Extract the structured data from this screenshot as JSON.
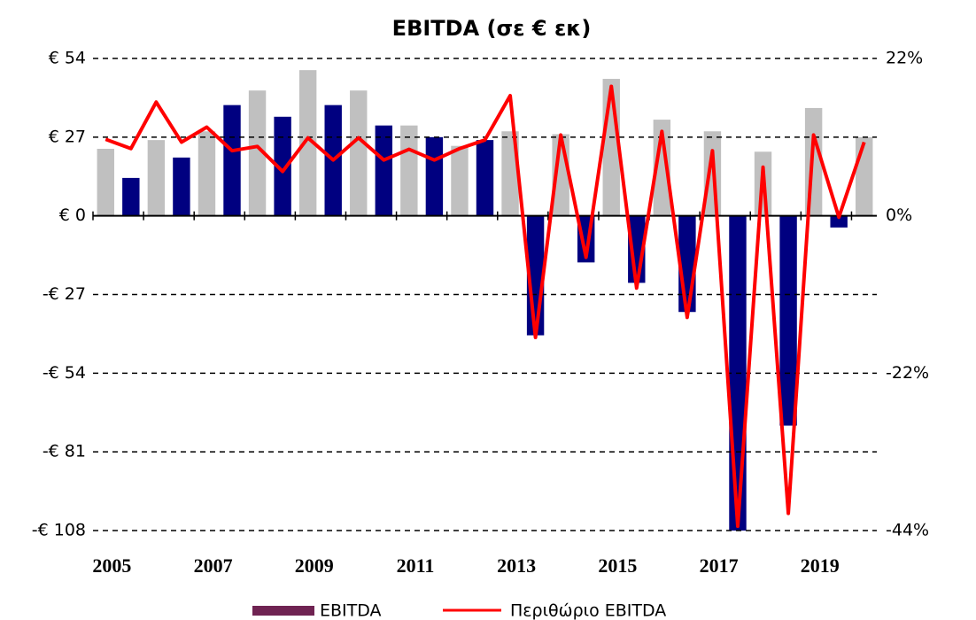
{
  "chart_data": {
    "type": "bar",
    "title": "EBITDA (σε € εκ)",
    "categories": [
      "2005",
      null,
      null,
      null,
      "2007",
      null,
      null,
      null,
      "2009",
      null,
      null,
      null,
      "2011",
      null,
      null,
      null,
      "2013",
      null,
      null,
      null,
      "2015",
      null,
      null,
      null,
      "2017",
      null,
      null,
      null,
      "2019",
      null,
      null
    ],
    "series": [
      {
        "name": "EBITDA",
        "color": "#6f2352",
        "bar_colors": [
          "#c0c0c0",
          "#000080"
        ],
        "values": [
          23,
          13,
          26,
          20,
          29,
          38,
          43,
          34,
          50,
          38,
          43,
          31,
          31,
          27,
          24,
          26,
          29,
          -41,
          28,
          -16,
          47,
          -23,
          33,
          -33,
          29,
          -108,
          22,
          -72,
          37,
          -4,
          27
        ]
      },
      {
        "name": "Περιθώριο EBITDA",
        "color": "#ff0000",
        "type": "line",
        "axis": "y2",
        "values": [
          10.7,
          9.4,
          15.9,
          10.3,
          12.4,
          9.1,
          9.7,
          6.2,
          10.9,
          7.8,
          10.9,
          7.8,
          9.3,
          7.8,
          9.4,
          10.6,
          16.8,
          -17.0,
          11.3,
          -5.8,
          18.1,
          -10.1,
          11.8,
          -14.2,
          9.1,
          -43.4,
          6.8,
          -41.6,
          11.3,
          -0.2,
          10.3
        ]
      }
    ],
    "ylim": [
      -108,
      54
    ],
    "yticks": [
      {
        "value": 54,
        "label": "€ 54"
      },
      {
        "value": 27,
        "label": "€ 27"
      },
      {
        "value": 0,
        "label": "€ 0"
      },
      {
        "value": -27,
        "label": "-€ 27"
      },
      {
        "value": -54,
        "label": "-€ 54"
      },
      {
        "value": -81,
        "label": "-€ 81"
      },
      {
        "value": -108,
        "label": "-€ 108"
      }
    ],
    "y2lim": [
      -44,
      22
    ],
    "y2ticks": [
      {
        "value": 22,
        "label": "22%"
      },
      {
        "value": 0,
        "label": "0%"
      },
      {
        "value": -22,
        "label": "-22%"
      },
      {
        "value": -44,
        "label": "-44%"
      }
    ],
    "grid": true
  }
}
